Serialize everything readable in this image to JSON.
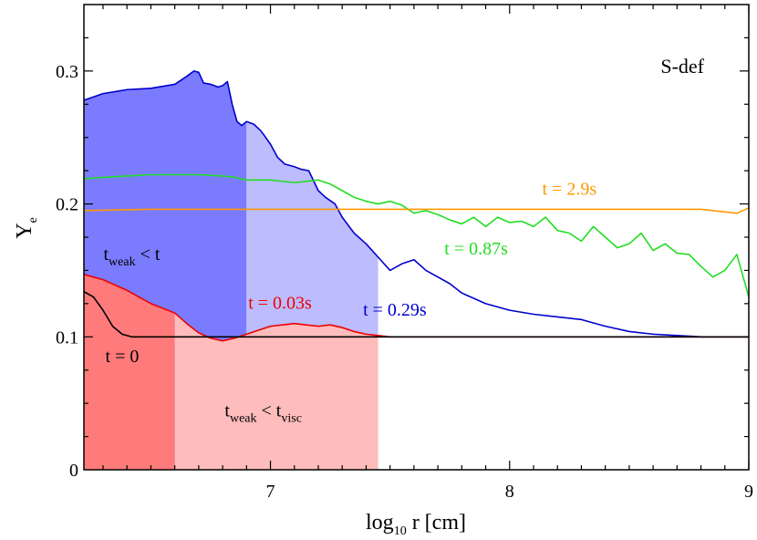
{
  "chart_data": {
    "type": "line",
    "title": "S-def",
    "xlabel": {
      "main": "log",
      "sub": "10",
      "rest": " r [cm]"
    },
    "ylabel": {
      "main": "Y",
      "sub": "e"
    },
    "xlim": [
      6.22,
      9.0
    ],
    "ylim": [
      0,
      0.35
    ],
    "xticks": [
      7,
      8,
      9
    ],
    "yticks": [
      0,
      0.1,
      0.2,
      0.3
    ],
    "xtick_labels": [
      "7",
      "8",
      "9"
    ],
    "ytick_labels": [
      "0",
      "0.1",
      "0.2",
      "0.3"
    ],
    "grid": false,
    "regions": [
      {
        "label": {
          "main": "t",
          "sub": "weak",
          "mid": " < t",
          "sub2": ""
        },
        "color": "#7b7bff",
        "y_top_series": "t = 0.29s",
        "x_range": [
          6.22,
          6.9
        ]
      },
      {
        "label": null,
        "color": "#bcbcff",
        "y_top_series": "t = 0.29s",
        "x_range": [
          6.9,
          7.45
        ]
      },
      {
        "label": null,
        "color": "#ff7b7b",
        "y_top_series": "t = 0.03s",
        "x_range": [
          6.22,
          6.6
        ]
      },
      {
        "label": {
          "main": "t",
          "sub": "weak",
          "mid": " < t",
          "sub2": "visc"
        },
        "color": "#ffbcbc",
        "y_top_series": "t = 0.03s",
        "x_range": [
          6.6,
          7.45
        ]
      }
    ],
    "series": [
      {
        "name": "t = 0.29s",
        "color": "#0000cc",
        "x": [
          6.22,
          6.3,
          6.4,
          6.5,
          6.6,
          6.65,
          6.68,
          6.7,
          6.72,
          6.75,
          6.78,
          6.8,
          6.82,
          6.84,
          6.86,
          6.88,
          6.9,
          6.93,
          6.96,
          7.0,
          7.03,
          7.06,
          7.1,
          7.13,
          7.16,
          7.2,
          7.23,
          7.27,
          7.3,
          7.35,
          7.4,
          7.45,
          7.5,
          7.55,
          7.6,
          7.65,
          7.7,
          7.75,
          7.8,
          7.9,
          8.0,
          8.1,
          8.2,
          8.3,
          8.4,
          8.5,
          8.6,
          8.7,
          8.8,
          8.9,
          9.0
        ],
        "y": [
          0.278,
          0.283,
          0.286,
          0.287,
          0.29,
          0.296,
          0.3,
          0.299,
          0.291,
          0.29,
          0.288,
          0.289,
          0.292,
          0.275,
          0.262,
          0.259,
          0.262,
          0.26,
          0.255,
          0.245,
          0.235,
          0.23,
          0.228,
          0.226,
          0.225,
          0.21,
          0.205,
          0.2,
          0.19,
          0.178,
          0.17,
          0.16,
          0.15,
          0.155,
          0.158,
          0.15,
          0.145,
          0.14,
          0.133,
          0.125,
          0.12,
          0.117,
          0.115,
          0.113,
          0.108,
          0.104,
          0.102,
          0.101,
          0.1,
          0.1,
          0.1
        ]
      },
      {
        "name": "t = 0.87s",
        "color": "#22dd22",
        "x": [
          6.22,
          6.3,
          6.4,
          6.5,
          6.6,
          6.7,
          6.8,
          6.85,
          6.9,
          7.0,
          7.1,
          7.2,
          7.25,
          7.3,
          7.35,
          7.4,
          7.45,
          7.5,
          7.55,
          7.6,
          7.65,
          7.7,
          7.75,
          7.8,
          7.85,
          7.9,
          7.95,
          8.0,
          8.05,
          8.1,
          8.15,
          8.2,
          8.25,
          8.3,
          8.35,
          8.4,
          8.45,
          8.5,
          8.55,
          8.6,
          8.65,
          8.7,
          8.75,
          8.8,
          8.85,
          8.9,
          8.95,
          9.0
        ],
        "y": [
          0.219,
          0.22,
          0.221,
          0.222,
          0.222,
          0.222,
          0.221,
          0.22,
          0.218,
          0.218,
          0.216,
          0.218,
          0.215,
          0.21,
          0.205,
          0.202,
          0.2,
          0.202,
          0.199,
          0.193,
          0.195,
          0.192,
          0.188,
          0.185,
          0.19,
          0.183,
          0.19,
          0.186,
          0.187,
          0.183,
          0.19,
          0.18,
          0.178,
          0.172,
          0.183,
          0.175,
          0.167,
          0.17,
          0.178,
          0.165,
          0.17,
          0.163,
          0.162,
          0.153,
          0.145,
          0.15,
          0.162,
          0.13
        ]
      },
      {
        "name": "t = 2.9s",
        "color": "#ff9900",
        "x": [
          6.22,
          6.5,
          7.0,
          7.5,
          8.0,
          8.5,
          8.8,
          8.9,
          8.95,
          9.0
        ],
        "y": [
          0.195,
          0.196,
          0.196,
          0.196,
          0.196,
          0.196,
          0.196,
          0.194,
          0.193,
          0.197
        ]
      },
      {
        "name": "t = 0.03s",
        "color": "#ee0000",
        "x": [
          6.22,
          6.3,
          6.4,
          6.5,
          6.6,
          6.65,
          6.7,
          6.75,
          6.8,
          6.85,
          6.9,
          6.95,
          7.0,
          7.05,
          7.1,
          7.15,
          7.2,
          7.25,
          7.3,
          7.35,
          7.4,
          7.45,
          7.5,
          7.6,
          7.8,
          8.0,
          8.5,
          9.0
        ],
        "y": [
          0.147,
          0.143,
          0.135,
          0.125,
          0.118,
          0.11,
          0.103,
          0.099,
          0.097,
          0.099,
          0.102,
          0.105,
          0.108,
          0.109,
          0.11,
          0.109,
          0.108,
          0.109,
          0.107,
          0.104,
          0.102,
          0.101,
          0.1,
          0.1,
          0.1,
          0.1,
          0.1,
          0.1
        ]
      },
      {
        "name": "t = 0",
        "color": "#000000",
        "x": [
          6.22,
          6.26,
          6.3,
          6.34,
          6.38,
          6.42,
          6.5,
          7.0,
          8.0,
          9.0
        ],
        "y": [
          0.134,
          0.13,
          0.12,
          0.108,
          0.102,
          0.1,
          0.1,
          0.1,
          0.1,
          0.1
        ]
      }
    ],
    "annotations": [
      {
        "text": "t = 2.9s",
        "color": "#ff9900",
        "x": 8.25,
        "y": 0.207
      },
      {
        "text": "t = 0.87s",
        "color": "#22dd22",
        "x": 7.86,
        "y": 0.162
      },
      {
        "text": "t = 0.29s",
        "color": "#0000cc",
        "x": 7.52,
        "y": 0.116
      },
      {
        "text": "t = 0.03s",
        "color": "#ee0000",
        "x": 7.04,
        "y": 0.121
      },
      {
        "text": "t = 0",
        "color": "#000000",
        "x": 6.38,
        "y": 0.081
      }
    ]
  }
}
